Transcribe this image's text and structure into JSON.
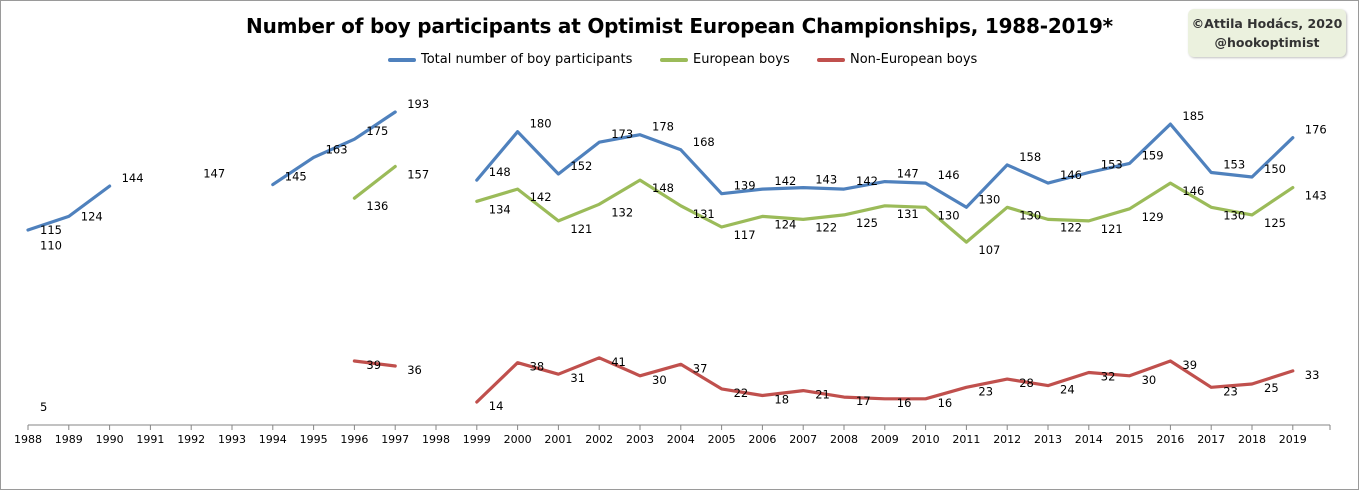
{
  "chart_data": {
    "type": "line",
    "title": "Number of boy participants at Optimist European Championships, 1988-2019*",
    "credit": [
      "©Attila Hodács, 2020",
      "@hookoptimist"
    ],
    "categories": [
      "1988",
      "1989",
      "1990",
      "1991",
      "1992",
      "1993",
      "1994",
      "1995",
      "1996",
      "1997",
      "1998",
      "1999",
      "2000",
      "2001",
      "2002",
      "2003",
      "2004",
      "2005",
      "2006",
      "2007",
      "2008",
      "2009",
      "2010",
      "2011",
      "2012",
      "2013",
      "2014",
      "2015",
      "2016",
      "2017",
      "2018",
      "2019"
    ],
    "ylim": [
      0,
      210
    ],
    "legend_position": "top",
    "series": [
      {
        "name": "Total number of boy participants",
        "color": "#4f81bd",
        "values": [
          115,
          124,
          144,
          null,
          147,
          null,
          145,
          163,
          175,
          193,
          null,
          148,
          180,
          152,
          173,
          178,
          168,
          139,
          142,
          143,
          142,
          147,
          146,
          130,
          158,
          146,
          153,
          159,
          185,
          153,
          150,
          176
        ]
      },
      {
        "name": "European boys",
        "color": "#9bbb59",
        "values": [
          110,
          null,
          null,
          null,
          null,
          null,
          null,
          null,
          136,
          157,
          null,
          134,
          142,
          121,
          132,
          148,
          131,
          117,
          124,
          122,
          125,
          131,
          130,
          107,
          130,
          122,
          121,
          129,
          146,
          130,
          125,
          143
        ]
      },
      {
        "name": "Non-European boys",
        "color": "#c0504d",
        "values": [
          5,
          null,
          null,
          null,
          null,
          null,
          null,
          null,
          39,
          36,
          null,
          14,
          38,
          31,
          41,
          30,
          37,
          22,
          18,
          21,
          17,
          16,
          16,
          23,
          28,
          24,
          32,
          30,
          39,
          23,
          25,
          33
        ]
      }
    ]
  }
}
